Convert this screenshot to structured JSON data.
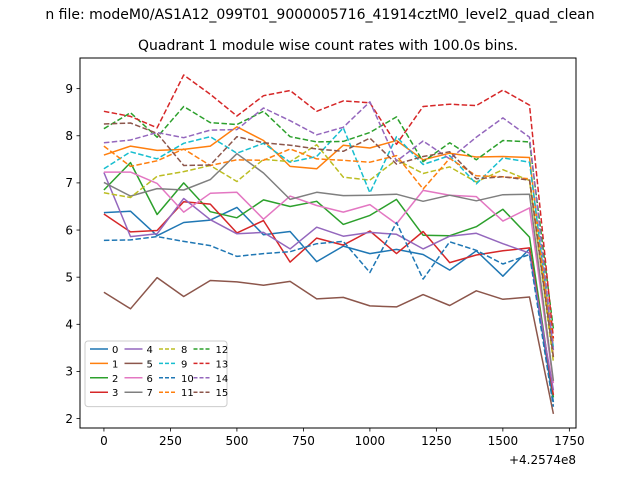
{
  "chart_data": {
    "type": "line",
    "suptitle": "n file: modeM0/AS1A12_099T01_9000005716_41914cztM0_level2_quad_clean",
    "title": "Quadrant 1 module wise count rates with 100.0s bins.",
    "xlabel": "",
    "ylabel": "",
    "x_offset_label": "+4.2574e8",
    "xlim": [
      -90,
      1775
    ],
    "ylim": [
      1.8,
      9.65
    ],
    "xticks": [
      0,
      250,
      500,
      750,
      1000,
      1250,
      1500,
      1750
    ],
    "yticks": [
      2,
      3,
      4,
      5,
      6,
      7,
      8,
      9
    ],
    "grid": false,
    "legend": {
      "location": "lower-left",
      "columns": 4
    },
    "x": [
      0,
      100,
      200,
      300,
      400,
      500,
      600,
      700,
      800,
      900,
      1000,
      1100,
      1200,
      1300,
      1400,
      1500,
      1600,
      1690
    ],
    "series": [
      {
        "name": "0",
        "color": "#1f77b4",
        "dash": "solid",
        "values": [
          6.37,
          6.4,
          5.88,
          6.16,
          6.21,
          6.48,
          5.9,
          5.97,
          5.33,
          5.66,
          5.5,
          5.59,
          5.48,
          5.15,
          5.56,
          5.02,
          5.6,
          2.35
        ]
      },
      {
        "name": "1",
        "color": "#ff7f0e",
        "dash": "solid",
        "values": [
          7.59,
          7.78,
          7.69,
          7.71,
          7.78,
          8.19,
          7.9,
          7.35,
          7.3,
          7.8,
          7.74,
          7.9,
          7.49,
          7.63,
          7.55,
          7.56,
          7.54,
          3.3
        ]
      },
      {
        "name": "2",
        "color": "#2ca02c",
        "dash": "solid",
        "values": [
          6.85,
          7.43,
          6.33,
          7.0,
          6.39,
          6.26,
          6.64,
          6.5,
          6.61,
          6.12,
          6.31,
          6.65,
          5.89,
          5.88,
          6.07,
          6.44,
          5.85,
          2.45
        ]
      },
      {
        "name": "3",
        "color": "#d62728",
        "dash": "solid",
        "values": [
          6.34,
          5.96,
          5.99,
          6.6,
          6.55,
          5.94,
          6.2,
          5.32,
          5.83,
          5.68,
          5.98,
          5.5,
          5.97,
          5.31,
          5.47,
          5.56,
          5.62,
          2.5
        ]
      },
      {
        "name": "4",
        "color": "#9467bd",
        "dash": "solid",
        "values": [
          7.22,
          5.86,
          5.92,
          6.67,
          6.22,
          5.92,
          5.95,
          5.6,
          6.06,
          5.87,
          5.95,
          5.91,
          5.6,
          5.87,
          5.93,
          5.71,
          5.51,
          2.6
        ]
      },
      {
        "name": "5",
        "color": "#8c564b",
        "dash": "solid",
        "values": [
          4.68,
          4.33,
          4.99,
          4.59,
          4.93,
          4.9,
          4.83,
          4.91,
          4.54,
          4.57,
          4.39,
          4.37,
          4.63,
          4.4,
          4.71,
          4.53,
          4.58,
          2.1
        ]
      },
      {
        "name": "6",
        "color": "#e377c2",
        "dash": "solid",
        "values": [
          7.23,
          7.23,
          6.99,
          6.38,
          6.78,
          6.8,
          6.23,
          6.72,
          6.52,
          6.38,
          6.54,
          6.13,
          6.84,
          6.74,
          6.71,
          6.19,
          6.47,
          2.75
        ]
      },
      {
        "name": "7",
        "color": "#7f7f7f",
        "dash": "solid",
        "values": [
          7.01,
          6.72,
          6.88,
          6.85,
          7.07,
          7.62,
          7.21,
          6.65,
          6.8,
          6.73,
          6.74,
          6.76,
          6.61,
          6.74,
          6.62,
          6.75,
          6.76,
          2.8
        ]
      },
      {
        "name": "8",
        "color": "#bcbd22",
        "dash": "dashed",
        "values": [
          6.79,
          6.69,
          7.14,
          7.24,
          7.37,
          7.03,
          7.5,
          7.45,
          7.81,
          7.12,
          7.06,
          7.49,
          7.2,
          7.34,
          7.02,
          7.28,
          7.05,
          3.2
        ]
      },
      {
        "name": "9",
        "color": "#17becf",
        "dash": "dashed",
        "values": [
          7.3,
          7.66,
          7.51,
          7.84,
          7.98,
          7.63,
          7.84,
          7.44,
          7.56,
          8.17,
          6.79,
          7.98,
          7.39,
          7.58,
          6.98,
          7.53,
          7.44,
          3.5
        ]
      },
      {
        "name": "10",
        "color": "#1f77b4",
        "dash": "dashed",
        "values": [
          5.78,
          5.79,
          5.86,
          5.76,
          5.67,
          5.44,
          5.5,
          5.54,
          5.71,
          5.76,
          5.1,
          6.16,
          4.96,
          5.75,
          5.57,
          5.28,
          5.48,
          2.25
        ]
      },
      {
        "name": "11",
        "color": "#ff7f0e",
        "dash": "dashed",
        "values": [
          7.78,
          7.35,
          7.47,
          7.72,
          7.37,
          7.49,
          7.48,
          7.72,
          7.51,
          7.48,
          7.44,
          7.58,
          6.87,
          7.52,
          7.15,
          7.13,
          7.09,
          3.6
        ]
      },
      {
        "name": "12",
        "color": "#2ca02c",
        "dash": "dashed",
        "values": [
          8.15,
          8.49,
          7.97,
          8.62,
          8.28,
          8.24,
          8.52,
          7.98,
          7.87,
          7.88,
          8.07,
          8.4,
          7.45,
          7.85,
          7.49,
          7.9,
          7.87,
          3.9
        ]
      },
      {
        "name": "13",
        "color": "#d62728",
        "dash": "dashed",
        "values": [
          8.52,
          8.41,
          8.17,
          9.29,
          8.88,
          8.42,
          8.85,
          8.96,
          8.52,
          8.74,
          8.7,
          7.82,
          8.62,
          8.67,
          8.64,
          8.97,
          8.65,
          3.7
        ]
      },
      {
        "name": "14",
        "color": "#9467bd",
        "dash": "dashed",
        "values": [
          7.85,
          7.91,
          8.07,
          7.96,
          8.12,
          8.13,
          8.59,
          8.32,
          8.02,
          8.18,
          8.72,
          7.46,
          7.89,
          7.51,
          7.97,
          8.38,
          7.97,
          3.45
        ]
      },
      {
        "name": "15",
        "color": "#8c564b",
        "dash": "dashed",
        "values": [
          8.25,
          8.27,
          8.05,
          7.37,
          7.38,
          7.98,
          7.85,
          7.8,
          7.72,
          7.67,
          7.95,
          7.4,
          7.56,
          7.66,
          7.09,
          7.13,
          7.06,
          3.3
        ]
      }
    ]
  }
}
